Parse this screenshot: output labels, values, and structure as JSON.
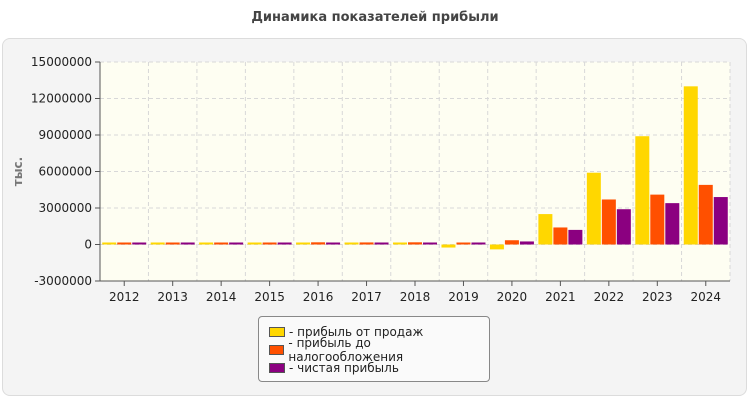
{
  "chart_data": {
    "type": "bar",
    "title": "Динамика показателей прибыли",
    "ylabel": "тыс.",
    "xlabel": "",
    "categories": [
      "2012",
      "2013",
      "2014",
      "2015",
      "2016",
      "2017",
      "2018",
      "2019",
      "2020",
      "2021",
      "2022",
      "2023",
      "2024"
    ],
    "ylim": [
      -3000000,
      15000000
    ],
    "yticks": [
      -3000000,
      0,
      3000000,
      6000000,
      9000000,
      12000000,
      15000000
    ],
    "grid": true,
    "legend_position": "bottom-center",
    "series": [
      {
        "name": "- прибыль от продаж",
        "color": "#ffd700",
        "values": [
          100000,
          80000,
          90000,
          100000,
          110000,
          120000,
          130000,
          -250000,
          -400000,
          2500000,
          5900000,
          8900000,
          13000000
        ]
      },
      {
        "name": "- прибыль до налогообложения",
        "color": "#ff5000",
        "values": [
          80000,
          90000,
          80000,
          90000,
          180000,
          170000,
          180000,
          150000,
          350000,
          1400000,
          3700000,
          4100000,
          4900000
        ]
      },
      {
        "name": "- чистая прибыль",
        "color": "#8b0080",
        "values": [
          60000,
          70000,
          60000,
          70000,
          120000,
          130000,
          160000,
          140000,
          250000,
          1200000,
          2900000,
          3400000,
          3900000
        ]
      }
    ]
  }
}
